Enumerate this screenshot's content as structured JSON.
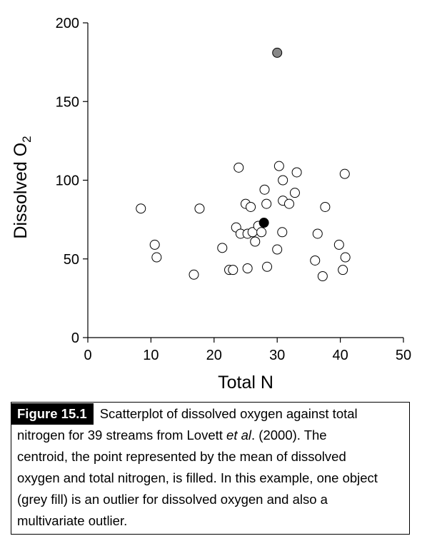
{
  "chart_data": {
    "type": "scatter",
    "xlabel": "Total N",
    "ylabel_main": "Dissolved O",
    "ylabel_sub": "2",
    "xlim": [
      0,
      50
    ],
    "ylim": [
      0,
      200
    ],
    "x_ticks": [
      0,
      10,
      20,
      30,
      40,
      50
    ],
    "y_ticks": [
      0,
      50,
      100,
      150,
      200
    ],
    "grid": false,
    "points_open": [
      {
        "x": 8.4,
        "y": 82
      },
      {
        "x": 10.6,
        "y": 59
      },
      {
        "x": 10.9,
        "y": 51
      },
      {
        "x": 16.8,
        "y": 40
      },
      {
        "x": 17.7,
        "y": 82
      },
      {
        "x": 21.3,
        "y": 57
      },
      {
        "x": 22.4,
        "y": 43
      },
      {
        "x": 23.0,
        "y": 43
      },
      {
        "x": 23.5,
        "y": 70
      },
      {
        "x": 23.9,
        "y": 108
      },
      {
        "x": 24.2,
        "y": 66
      },
      {
        "x": 25.0,
        "y": 85
      },
      {
        "x": 25.3,
        "y": 44
      },
      {
        "x": 25.3,
        "y": 66
      },
      {
        "x": 25.8,
        "y": 83
      },
      {
        "x": 26.1,
        "y": 67
      },
      {
        "x": 26.5,
        "y": 61
      },
      {
        "x": 27.0,
        "y": 71
      },
      {
        "x": 27.5,
        "y": 67
      },
      {
        "x": 28.0,
        "y": 94
      },
      {
        "x": 28.3,
        "y": 85
      },
      {
        "x": 28.4,
        "y": 45
      },
      {
        "x": 30.0,
        "y": 56
      },
      {
        "x": 30.3,
        "y": 109
      },
      {
        "x": 30.8,
        "y": 67
      },
      {
        "x": 30.9,
        "y": 100
      },
      {
        "x": 30.9,
        "y": 87
      },
      {
        "x": 31.9,
        "y": 85
      },
      {
        "x": 32.8,
        "y": 92
      },
      {
        "x": 33.1,
        "y": 105
      },
      {
        "x": 36.0,
        "y": 49
      },
      {
        "x": 36.4,
        "y": 66
      },
      {
        "x": 37.2,
        "y": 39
      },
      {
        "x": 37.6,
        "y": 83
      },
      {
        "x": 39.8,
        "y": 59
      },
      {
        "x": 40.4,
        "y": 43
      },
      {
        "x": 40.7,
        "y": 104
      },
      {
        "x": 40.8,
        "y": 51
      }
    ],
    "outlier_point": {
      "x": 30.0,
      "y": 181,
      "fill": "#888888"
    },
    "centroid_point": {
      "x": 27.9,
      "y": 73,
      "fill": "#000000"
    }
  },
  "caption": {
    "figure_label": "Figure 15.1",
    "line1": "Scatterplot of dissolved oxygen against total",
    "line2_pre": "nitrogen for 39 streams from Lovett ",
    "line2_em": "et al",
    "line2_post": ". (2000). The",
    "line3": "centroid, the point represented by the mean of dissolved",
    "line4": "oxygen and total nitrogen, is filled. In this example, one object",
    "line5": "(grey fill) is an outlier for dissolved oxygen and also a",
    "line6": "multivariate outlier."
  }
}
